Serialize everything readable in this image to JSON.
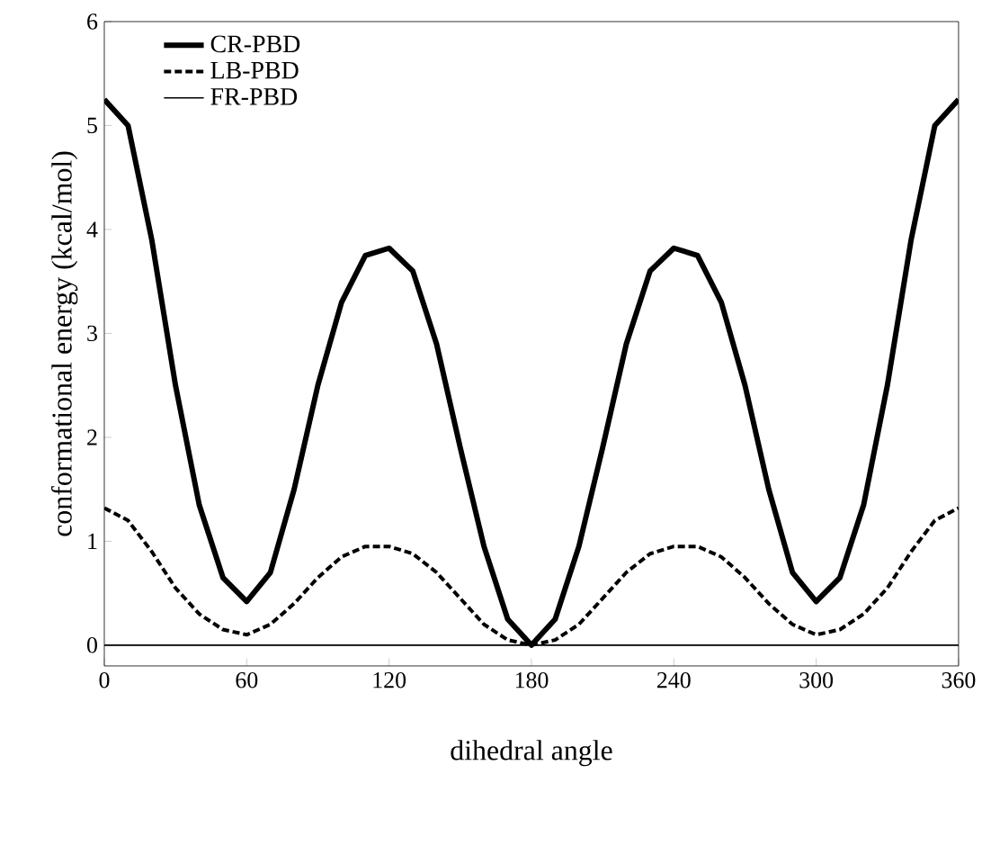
{
  "chart_data": {
    "type": "line",
    "xlabel": "dihedral angle",
    "ylabel": "conformational energy (kcal/mol)",
    "x": [
      0,
      10,
      20,
      30,
      40,
      50,
      60,
      70,
      80,
      90,
      100,
      110,
      120,
      130,
      140,
      150,
      160,
      170,
      180,
      190,
      200,
      210,
      220,
      230,
      240,
      250,
      260,
      270,
      280,
      290,
      300,
      310,
      320,
      330,
      340,
      350,
      360
    ],
    "series": [
      {
        "name": "CR-PBD",
        "color": "#000000",
        "line_style": "solid",
        "values": [
          5.25,
          5.0,
          3.9,
          2.5,
          1.35,
          0.65,
          0.42,
          0.7,
          1.5,
          2.5,
          3.3,
          3.75,
          3.82,
          3.6,
          2.9,
          1.9,
          0.95,
          0.25,
          0,
          0.25,
          0.95,
          1.9,
          2.9,
          3.6,
          3.82,
          3.75,
          3.3,
          2.5,
          1.5,
          0.7,
          0.42,
          0.65,
          1.35,
          2.5,
          3.9,
          5.0,
          5.25
        ]
      },
      {
        "name": "LB-PBD",
        "color": "#000000",
        "line_style": "dashed",
        "values": [
          1.32,
          1.2,
          0.9,
          0.55,
          0.3,
          0.15,
          0.1,
          0.2,
          0.4,
          0.65,
          0.85,
          0.95,
          0.95,
          0.88,
          0.7,
          0.45,
          0.2,
          0.05,
          0,
          0.05,
          0.2,
          0.45,
          0.7,
          0.88,
          0.95,
          0.95,
          0.85,
          0.65,
          0.4,
          0.2,
          0.1,
          0.15,
          0.3,
          0.55,
          0.9,
          1.2,
          1.32
        ]
      },
      {
        "name": "FR-PBD",
        "color": "#000000",
        "line_style": "solid",
        "x": [
          0,
          360
        ],
        "values": [
          0,
          0
        ]
      }
    ],
    "xlim": [
      0,
      360
    ],
    "xticks": [
      0,
      60,
      120,
      180,
      240,
      300,
      360
    ],
    "ylim": [
      -0.2,
      6
    ],
    "yticks": [
      0,
      1,
      2,
      3,
      4,
      5,
      6
    ],
    "legend": "top left",
    "grid": false,
    "marker": "none"
  }
}
